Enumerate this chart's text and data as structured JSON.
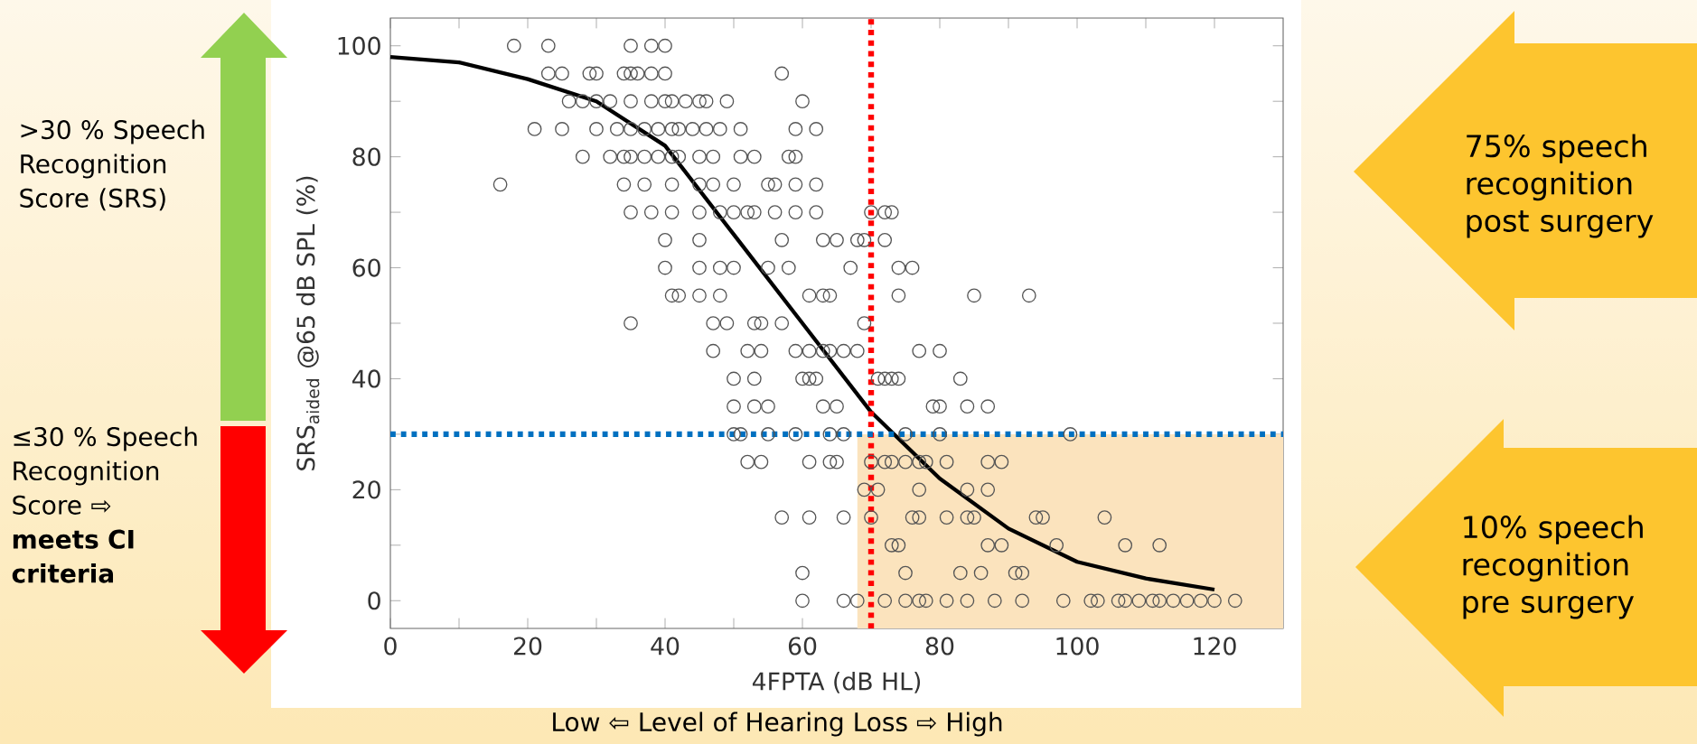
{
  "chart_data": {
    "type": "scatter",
    "xlabel": "4FPTA (dB HL)",
    "ylabel": "SRS$_{aided}$ @65 dB SPL (%)",
    "xlim": [
      0,
      130
    ],
    "ylim": [
      -5,
      105
    ],
    "xticks": [
      0,
      {
        "value": 10,
        "label": null
      },
      20,
      {
        "value": 30,
        "label": null
      },
      40,
      {
        "value": 50,
        "label": null
      },
      60,
      {
        "value": 70,
        "label": null
      },
      80,
      {
        "value": 90,
        "label": null
      },
      100,
      {
        "value": 110,
        "label": null
      },
      120
    ],
    "yticks": [
      0,
      {
        "value": 10,
        "label": null
      },
      20,
      {
        "value": 30,
        "label": null
      },
      40,
      {
        "value": 50,
        "label": null
      },
      60,
      {
        "value": 70,
        "label": null
      },
      80,
      {
        "value": 90,
        "label": null
      },
      100
    ],
    "marker": "circle",
    "series": [
      {
        "color": "#555555",
        "x": [
          18,
          23,
          35,
          38,
          40,
          23,
          25,
          29,
          30,
          34,
          35,
          36,
          38,
          40,
          57,
          26,
          28,
          30,
          32,
          35,
          38,
          40,
          41,
          43,
          45,
          46,
          49,
          60,
          21,
          25,
          30,
          33,
          35,
          37,
          39,
          41,
          42,
          44,
          46,
          48,
          51,
          59,
          62,
          28,
          32,
          34,
          35,
          37,
          39,
          41,
          42,
          45,
          47,
          51,
          53,
          58,
          59,
          16,
          34,
          37,
          41,
          45,
          47,
          50,
          55,
          56,
          59,
          62,
          35,
          38,
          41,
          45,
          48,
          50,
          52,
          53,
          56,
          59,
          62,
          70,
          72,
          73,
          40,
          45,
          57,
          63,
          65,
          68,
          69,
          72,
          40,
          45,
          48,
          50,
          55,
          58,
          67,
          74,
          76,
          41,
          42,
          45,
          48,
          61,
          63,
          64,
          74,
          85,
          93,
          35,
          47,
          49,
          53,
          54,
          57,
          69,
          47,
          52,
          54,
          59,
          61,
          63,
          64,
          66,
          68,
          77,
          80,
          50,
          53,
          60,
          61,
          62,
          71,
          72,
          73,
          74,
          83,
          50,
          53,
          55,
          63,
          65,
          79,
          80,
          84,
          87,
          50,
          51,
          55,
          59,
          64,
          66,
          75,
          80,
          99,
          52,
          54,
          61,
          64,
          65,
          70,
          72,
          73,
          75,
          77,
          78,
          81,
          87,
          89,
          69,
          71,
          77,
          84,
          87,
          57,
          61,
          66,
          70,
          76,
          77,
          81,
          84,
          85,
          94,
          95,
          104,
          73,
          74,
          87,
          89,
          97,
          107,
          112,
          60,
          75,
          83,
          86,
          91,
          92,
          60,
          66,
          68,
          72,
          75,
          77,
          78,
          81,
          84,
          88,
          92,
          98,
          102,
          103,
          106,
          107,
          109,
          111,
          112,
          114,
          116,
          118,
          120,
          123
        ],
        "values": [
          100,
          100,
          100,
          100,
          100,
          95,
          95,
          95,
          95,
          95,
          95,
          95,
          95,
          95,
          95,
          90,
          90,
          90,
          90,
          90,
          90,
          90,
          90,
          90,
          90,
          90,
          90,
          90,
          85,
          85,
          85,
          85,
          85,
          85,
          85,
          85,
          85,
          85,
          85,
          85,
          85,
          85,
          85,
          80,
          80,
          80,
          80,
          80,
          80,
          80,
          80,
          80,
          80,
          80,
          80,
          80,
          80,
          75,
          75,
          75,
          75,
          75,
          75,
          75,
          75,
          75,
          75,
          75,
          70,
          70,
          70,
          70,
          70,
          70,
          70,
          70,
          70,
          70,
          70,
          70,
          70,
          70,
          65,
          65,
          65,
          65,
          65,
          65,
          65,
          65,
          60,
          60,
          60,
          60,
          60,
          60,
          60,
          60,
          60,
          55,
          55,
          55,
          55,
          55,
          55,
          55,
          55,
          55,
          55,
          50,
          50,
          50,
          50,
          50,
          50,
          50,
          45,
          45,
          45,
          45,
          45,
          45,
          45,
          45,
          45,
          45,
          45,
          40,
          40,
          40,
          40,
          40,
          40,
          40,
          40,
          40,
          40,
          35,
          35,
          35,
          35,
          35,
          35,
          35,
          35,
          35,
          30,
          30,
          30,
          30,
          30,
          30,
          30,
          30,
          30,
          25,
          25,
          25,
          25,
          25,
          25,
          25,
          25,
          25,
          25,
          25,
          25,
          25,
          25,
          20,
          20,
          20,
          20,
          20,
          15,
          15,
          15,
          15,
          15,
          15,
          15,
          15,
          15,
          15,
          15,
          15,
          10,
          10,
          10,
          10,
          10,
          10,
          10,
          5,
          5,
          5,
          5,
          5,
          5,
          0,
          0,
          0,
          0,
          0,
          0,
          0,
          0,
          0,
          0,
          0,
          0,
          0,
          0,
          0,
          0,
          0,
          0,
          0,
          0,
          0,
          0,
          0,
          0
        ]
      },
      {
        "type": "line",
        "color": "#000000",
        "marker": "none",
        "x": [
          0,
          10,
          20,
          30,
          40,
          50,
          60,
          70,
          80,
          90,
          100,
          110,
          120
        ],
        "values": [
          98,
          97,
          94,
          90,
          82,
          66,
          50,
          34,
          22,
          13,
          7,
          4,
          2
        ]
      }
    ],
    "ref_lines": [
      {
        "axis": "x",
        "value": 70,
        "color": "#ff0000",
        "line_style": "dotted"
      },
      {
        "axis": "y",
        "value": 30,
        "color": "#0070c0",
        "line_style": "dotted"
      }
    ],
    "bands": [
      {
        "axis": "x",
        "from": 68,
        "to": 130,
        "color": "#fbe3bd"
      }
    ],
    "annotations": [
      ">30 % Speech Recognition Score (SRS)",
      "≤30 % Speech Recognition Score ⇨ **meets CI criteria**",
      "75% speech recognition post surgery",
      "10% speech recognition pre surgery",
      "Low ⇦ Level of Hearing Loss ⇨ High"
    ]
  }
}
